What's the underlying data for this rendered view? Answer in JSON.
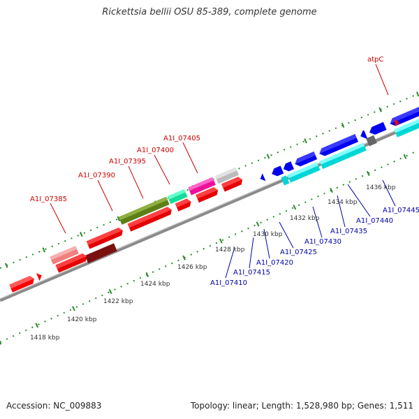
{
  "title": "Rickettsia bellii OSU 85-389, complete genome",
  "footer": {
    "accession": "Accession: NC_009883",
    "topology": "Topology: linear; Length: 1,528,980 bp; Genes: 1,511"
  },
  "colors": {
    "forward_label": "#cc0000",
    "reverse_label": "#0000aa",
    "backbone": "#888888"
  },
  "scale_labels": [
    "1418 kbp",
    "1420 kbp",
    "1422 kbp",
    "1424 kbp",
    "1426 kbp",
    "1428 kbp",
    "1430 kbp",
    "1432 kbp",
    "1434 kbp",
    "1436 kbp"
  ],
  "top_labels": [
    "A1I_07385",
    "A1I_07390",
    "A1I_07395",
    "A1I_07400",
    "A1I_07405",
    "atpC"
  ],
  "bottom_labels": [
    "A1I_07410",
    "A1I_07415",
    "A1I_07420",
    "A1I_07425",
    "A1I_07430",
    "A1I_07435",
    "A1I_07440",
    "A1I_07445"
  ]
}
